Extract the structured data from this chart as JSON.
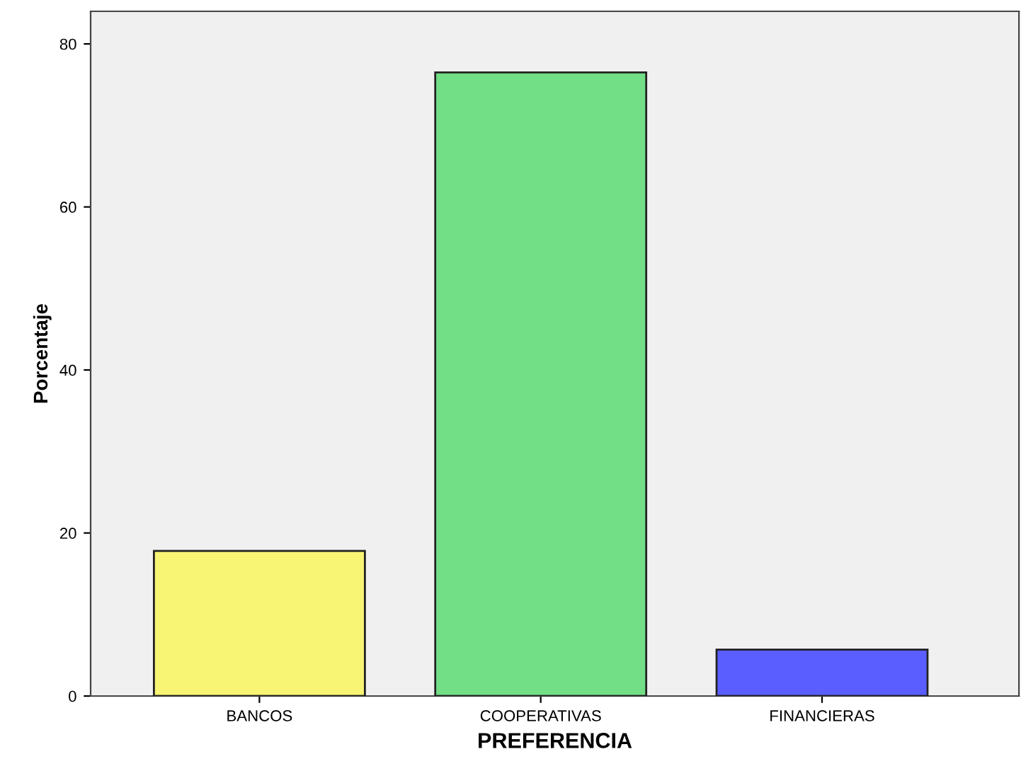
{
  "chart_data": {
    "type": "bar",
    "xlabel": "PREFERENCIA",
    "ylabel": "Porcentaje",
    "categories": [
      "BANCOS",
      "COOPERATIVAS",
      "FINANCIERAS"
    ],
    "values": [
      17.8,
      76.5,
      5.7
    ],
    "colors": [
      "#f9f574",
      "#72de86",
      "#5b5eff"
    ],
    "ylim": [
      0,
      84
    ],
    "yticks": [
      0,
      20,
      40,
      60,
      80
    ],
    "grid": false
  }
}
